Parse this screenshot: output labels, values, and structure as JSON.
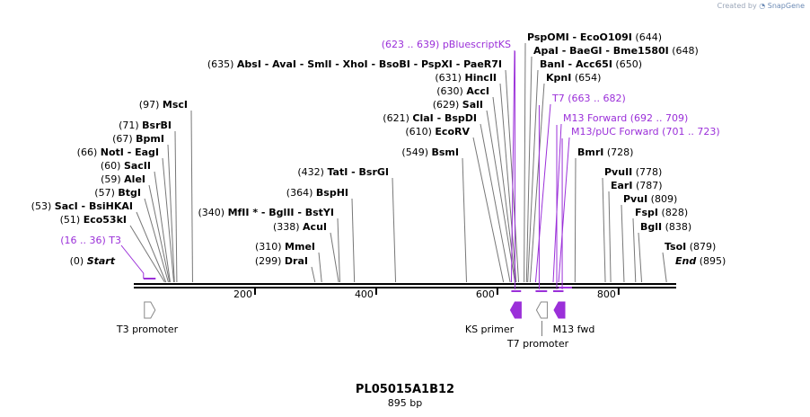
{
  "title": "PL05015A1B12",
  "subtitle": "895 bp",
  "credit": {
    "prefix": "Created by",
    "brand": "SnapGene"
  },
  "colors": {
    "primer": "#9b30d9",
    "feature": "#9b30d9",
    "text": "#000000",
    "line": "#777777"
  },
  "sequence_length": 895,
  "ruler_ticks": [
    "200",
    "400",
    "600",
    "800"
  ],
  "ruler_positions": [
    200,
    400,
    600,
    800
  ],
  "sites": [
    {
      "pos": "(0)",
      "name": "Start",
      "italic": true,
      "at": 0
    },
    {
      "pos": "(16 .. 36)",
      "name": "T3",
      "primer": true,
      "at": 16
    },
    {
      "pos": "(51)",
      "name": "Eco53kI",
      "at": 51
    },
    {
      "pos": "(53)",
      "name": "SacI - BsiHKAI",
      "at": 53
    },
    {
      "pos": "(57)",
      "name": "BtgI",
      "at": 57
    },
    {
      "pos": "(59)",
      "name": "AleI",
      "at": 59
    },
    {
      "pos": "(60)",
      "name": "SacII",
      "at": 60
    },
    {
      "pos": "(66)",
      "name": "NotI - EagI",
      "at": 66
    },
    {
      "pos": "(67)",
      "name": "BpmI",
      "at": 67
    },
    {
      "pos": "(71)",
      "name": "BsrBI",
      "at": 71
    },
    {
      "pos": "(97)",
      "name": "MscI",
      "at": 97
    },
    {
      "pos": "(299)",
      "name": "DraI",
      "at": 299
    },
    {
      "pos": "(310)",
      "name": "MmeI",
      "at": 310
    },
    {
      "pos": "(338)",
      "name": "AcuI",
      "at": 338
    },
    {
      "pos": "(340)",
      "name": "MfII * - BglII - BstYI",
      "at": 340
    },
    {
      "pos": "(364)",
      "name": "BspHI",
      "at": 364
    },
    {
      "pos": "(432)",
      "name": "TatI - BsrGI",
      "at": 432
    },
    {
      "pos": "(549)",
      "name": "BsmI",
      "at": 549
    },
    {
      "pos": "(610)",
      "name": "EcoRV",
      "at": 610
    },
    {
      "pos": "(621)",
      "name": "ClaI - BspDI",
      "at": 621
    },
    {
      "pos": "(629)",
      "name": "SalI",
      "at": 629
    },
    {
      "pos": "(630)",
      "name": "AccI",
      "at": 630
    },
    {
      "pos": "(631)",
      "name": "HincII",
      "at": 631
    },
    {
      "pos": "(635)",
      "name": "AbsI - AvaI - SmlI - XhoI - BsoBI - PspXI - PaeR7I",
      "at": 635
    },
    {
      "pos": "(623 .. 639)",
      "name": "pBluescriptKS",
      "primer": true,
      "at": 623
    },
    {
      "pos": "(644)",
      "name": "PspOMI - EcoO109I",
      "at": 644
    },
    {
      "pos": "(648)",
      "name": "ApaI - BaeGI - Bme1580I",
      "at": 648
    },
    {
      "pos": "(650)",
      "name": "BanI - Acc65I",
      "at": 650
    },
    {
      "pos": "(654)",
      "name": "KpnI",
      "at": 654
    },
    {
      "pos": "(663 .. 682)",
      "name": "T7",
      "primer": true,
      "at": 663
    },
    {
      "pos": "(692 .. 709)",
      "name": "M13 Forward",
      "primer": true,
      "at": 692
    },
    {
      "pos": "(701 .. 723)",
      "name": "M13/pUC Forward",
      "primer": true,
      "at": 701
    },
    {
      "pos": "(728)",
      "name": "BmrI",
      "at": 728
    },
    {
      "pos": "(778)",
      "name": "PvuII",
      "at": 778
    },
    {
      "pos": "(787)",
      "name": "EarI",
      "at": 787
    },
    {
      "pos": "(809)",
      "name": "PvuI",
      "at": 809
    },
    {
      "pos": "(828)",
      "name": "FspI",
      "at": 828
    },
    {
      "pos": "(838)",
      "name": "BglI",
      "at": 838
    },
    {
      "pos": "(879)",
      "name": "TsoI",
      "at": 879
    },
    {
      "pos": "(895)",
      "name": "End",
      "italic": true,
      "at": 895
    }
  ],
  "features": [
    {
      "label": "T3 promoter",
      "start": 16,
      "end": 34,
      "direction": "right",
      "filled": false
    },
    {
      "label": "KS primer",
      "start": 620,
      "end": 640,
      "direction": "left",
      "filled": true
    },
    {
      "label": "T7 promoter",
      "start": 663,
      "end": 682,
      "direction": "left",
      "filled": false
    },
    {
      "label": "M13 fwd",
      "start": 692,
      "end": 709,
      "direction": "left",
      "filled": true
    }
  ]
}
